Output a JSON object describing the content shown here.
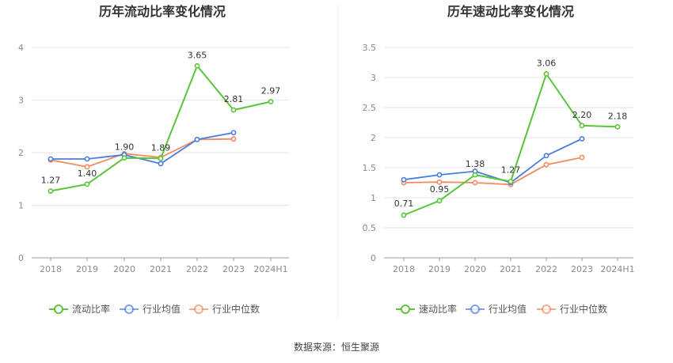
{
  "source": "数据来源：恒生聚源",
  "colors": {
    "main": "#5ac43a",
    "avg": "#4a7de0",
    "median": "#f08a60",
    "grid": "#e6e6e6",
    "axis": "#999999"
  },
  "chart_data": [
    {
      "type": "line",
      "title": "历年流动比率变化情况",
      "categories": [
        "2018",
        "2019",
        "2020",
        "2021",
        "2022",
        "2023",
        "2024H1"
      ],
      "y_ticks": [
        "0",
        "1",
        "2",
        "3",
        "4"
      ],
      "ylim": [
        0,
        4
      ],
      "grid": true,
      "legend_position": "bottom",
      "series": [
        {
          "name": "流动比率",
          "values": [
            1.27,
            1.4,
            1.9,
            1.89,
            3.65,
            2.81,
            2.97
          ],
          "labels": [
            "1.27",
            "1.40",
            "1.90",
            "1.89",
            "3.65",
            "2.81",
            "2.97"
          ]
        },
        {
          "name": "行业均值",
          "values": [
            1.88,
            1.88,
            1.96,
            1.79,
            2.25,
            2.38,
            null
          ]
        },
        {
          "name": "行业中位数",
          "values": [
            1.86,
            1.73,
            1.98,
            1.91,
            2.25,
            2.26,
            null
          ]
        }
      ]
    },
    {
      "type": "line",
      "title": "历年速动比率变化情况",
      "categories": [
        "2018",
        "2019",
        "2020",
        "2021",
        "2022",
        "2023",
        "2024H1"
      ],
      "y_ticks": [
        "0",
        "0.5",
        "1",
        "1.5",
        "2",
        "2.5",
        "3",
        "3.5"
      ],
      "ylim": [
        0,
        3.5
      ],
      "grid": true,
      "legend_position": "bottom",
      "series": [
        {
          "name": "速动比率",
          "values": [
            0.71,
            0.95,
            1.38,
            1.27,
            3.06,
            2.2,
            2.18
          ],
          "labels": [
            "0.71",
            "0.95",
            "1.38",
            "1.27",
            "3.06",
            "2.20",
            "2.18"
          ]
        },
        {
          "name": "行业均值",
          "values": [
            1.3,
            1.38,
            1.44,
            1.25,
            1.7,
            1.98,
            null
          ]
        },
        {
          "name": "行业中位数",
          "values": [
            1.25,
            1.26,
            1.25,
            1.22,
            1.55,
            1.67,
            null
          ]
        }
      ]
    }
  ]
}
